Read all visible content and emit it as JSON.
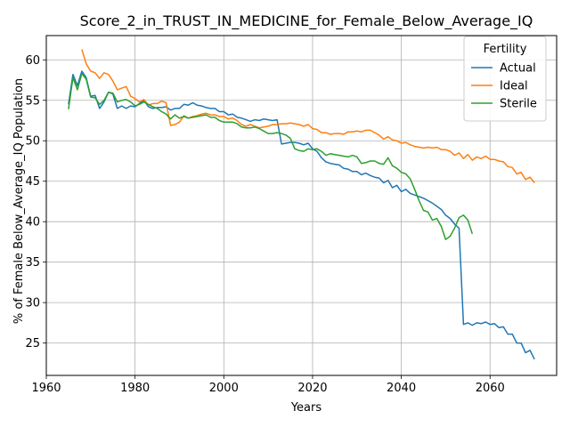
{
  "chart_data": {
    "type": "line",
    "title": "Score_2_in_TRUST_IN_MEDICINE_for_Female_Below_Average_IQ",
    "xlabel": "Years",
    "ylabel": "% of Female Below_Average_IQ Population",
    "xlim": [
      1960,
      2075
    ],
    "ylim": [
      21,
      63
    ],
    "xticks": [
      1960,
      1980,
      2000,
      2020,
      2040,
      2060
    ],
    "yticks": [
      25,
      30,
      35,
      40,
      45,
      50,
      55,
      60
    ],
    "grid": true,
    "legend": {
      "title": "Fertility",
      "placement": "top-right"
    },
    "series": [
      {
        "name": "Actual",
        "color": "#1f77b4",
        "points": [
          [
            1965,
            54.5
          ],
          [
            1966,
            58.2
          ],
          [
            1967,
            56.8
          ],
          [
            1968,
            58.6
          ],
          [
            1969,
            57.8
          ],
          [
            1970,
            55.5
          ],
          [
            1971,
            55.6
          ],
          [
            1972,
            54.0
          ],
          [
            1973,
            54.8
          ],
          [
            1974,
            56.0
          ],
          [
            1975,
            55.8
          ],
          [
            1976,
            54.0
          ],
          [
            1977,
            54.3
          ],
          [
            1978,
            54.0
          ],
          [
            1979,
            54.3
          ],
          [
            1980,
            54.2
          ],
          [
            1981,
            54.6
          ],
          [
            1982,
            55.0
          ],
          [
            1983,
            54.2
          ],
          [
            1984,
            54.0
          ],
          [
            1985,
            54.1
          ],
          [
            1986,
            54.1
          ],
          [
            1987,
            54.2
          ],
          [
            1988,
            53.8
          ],
          [
            1989,
            54.0
          ],
          [
            1990,
            54.0
          ],
          [
            1991,
            54.5
          ],
          [
            1992,
            54.4
          ],
          [
            1993,
            54.7
          ],
          [
            1994,
            54.4
          ],
          [
            1995,
            54.3
          ],
          [
            1996,
            54.1
          ],
          [
            1997,
            54.0
          ],
          [
            1998,
            54.0
          ],
          [
            1999,
            53.6
          ],
          [
            2000,
            53.6
          ],
          [
            2001,
            53.2
          ],
          [
            2002,
            53.3
          ],
          [
            2003,
            52.9
          ],
          [
            2004,
            52.8
          ],
          [
            2005,
            52.6
          ],
          [
            2006,
            52.4
          ],
          [
            2007,
            52.6
          ],
          [
            2008,
            52.5
          ],
          [
            2009,
            52.7
          ],
          [
            2010,
            52.6
          ],
          [
            2011,
            52.5
          ],
          [
            2012,
            52.6
          ],
          [
            2013,
            49.6
          ],
          [
            2014,
            49.7
          ],
          [
            2015,
            49.8
          ],
          [
            2016,
            49.8
          ],
          [
            2017,
            49.7
          ],
          [
            2018,
            49.5
          ],
          [
            2019,
            49.7
          ],
          [
            2020,
            49.0
          ],
          [
            2021,
            48.7
          ],
          [
            2022,
            47.9
          ],
          [
            2023,
            47.4
          ],
          [
            2024,
            47.2
          ],
          [
            2025,
            47.1
          ],
          [
            2026,
            47.0
          ],
          [
            2027,
            46.6
          ],
          [
            2028,
            46.5
          ],
          [
            2029,
            46.2
          ],
          [
            2030,
            46.2
          ],
          [
            2031,
            45.8
          ],
          [
            2032,
            46.0
          ],
          [
            2033,
            45.7
          ],
          [
            2034,
            45.5
          ],
          [
            2035,
            45.4
          ],
          [
            2036,
            44.8
          ],
          [
            2037,
            45.1
          ],
          [
            2038,
            44.2
          ],
          [
            2039,
            44.5
          ],
          [
            2040,
            43.7
          ],
          [
            2041,
            44.0
          ],
          [
            2042,
            43.5
          ],
          [
            2043,
            43.3
          ],
          [
            2044,
            43.1
          ],
          [
            2045,
            42.9
          ],
          [
            2046,
            42.6
          ],
          [
            2047,
            42.3
          ],
          [
            2048,
            41.9
          ],
          [
            2049,
            41.5
          ],
          [
            2050,
            40.8
          ],
          [
            2051,
            40.4
          ],
          [
            2052,
            39.7
          ],
          [
            2053,
            39.2
          ],
          [
            2054,
            27.3
          ],
          [
            2055,
            27.5
          ],
          [
            2056,
            27.2
          ],
          [
            2057,
            27.5
          ],
          [
            2058,
            27.4
          ],
          [
            2059,
            27.6
          ],
          [
            2060,
            27.3
          ],
          [
            2061,
            27.4
          ],
          [
            2062,
            26.9
          ],
          [
            2063,
            27.0
          ],
          [
            2064,
            26.1
          ],
          [
            2065,
            26.1
          ],
          [
            2066,
            25.0
          ],
          [
            2067,
            25.0
          ],
          [
            2068,
            23.8
          ],
          [
            2069,
            24.1
          ],
          [
            2070,
            23.0
          ]
        ]
      },
      {
        "name": "Ideal",
        "color": "#ff7f0e",
        "points": [
          [
            1968,
            61.3
          ],
          [
            1969,
            59.5
          ],
          [
            1970,
            58.6
          ],
          [
            1971,
            58.4
          ],
          [
            1972,
            57.7
          ],
          [
            1973,
            58.4
          ],
          [
            1974,
            58.2
          ],
          [
            1975,
            57.4
          ],
          [
            1976,
            56.3
          ],
          [
            1977,
            56.5
          ],
          [
            1978,
            56.7
          ],
          [
            1979,
            55.5
          ],
          [
            1980,
            55.2
          ],
          [
            1981,
            54.8
          ],
          [
            1982,
            55.1
          ],
          [
            1983,
            54.4
          ],
          [
            1984,
            54.6
          ],
          [
            1985,
            54.6
          ],
          [
            1986,
            54.9
          ],
          [
            1987,
            54.7
          ],
          [
            1988,
            51.9
          ],
          [
            1989,
            52.0
          ],
          [
            1990,
            52.3
          ],
          [
            1991,
            53.1
          ],
          [
            1992,
            52.8
          ],
          [
            1993,
            53.0
          ],
          [
            1994,
            53.1
          ],
          [
            1995,
            53.3
          ],
          [
            1996,
            53.4
          ],
          [
            1997,
            53.2
          ],
          [
            1998,
            53.2
          ],
          [
            1999,
            53.0
          ],
          [
            2000,
            53.0
          ],
          [
            2001,
            52.7
          ],
          [
            2002,
            52.8
          ],
          [
            2003,
            52.5
          ],
          [
            2004,
            52.0
          ],
          [
            2005,
            51.8
          ],
          [
            2006,
            52.0
          ],
          [
            2007,
            51.8
          ],
          [
            2008,
            51.6
          ],
          [
            2009,
            51.7
          ],
          [
            2010,
            51.8
          ],
          [
            2011,
            52.0
          ],
          [
            2012,
            52.0
          ],
          [
            2013,
            52.1
          ],
          [
            2014,
            52.1
          ],
          [
            2015,
            52.2
          ],
          [
            2016,
            52.1
          ],
          [
            2017,
            52.0
          ],
          [
            2018,
            51.8
          ],
          [
            2019,
            52.0
          ],
          [
            2020,
            51.5
          ],
          [
            2021,
            51.4
          ],
          [
            2022,
            51.0
          ],
          [
            2023,
            51.0
          ],
          [
            2024,
            50.8
          ],
          [
            2025,
            50.9
          ],
          [
            2026,
            50.9
          ],
          [
            2027,
            50.8
          ],
          [
            2028,
            51.1
          ],
          [
            2029,
            51.1
          ],
          [
            2030,
            51.2
          ],
          [
            2031,
            51.1
          ],
          [
            2032,
            51.3
          ],
          [
            2033,
            51.3
          ],
          [
            2034,
            51.0
          ],
          [
            2035,
            50.7
          ],
          [
            2036,
            50.2
          ],
          [
            2037,
            50.5
          ],
          [
            2038,
            50.1
          ],
          [
            2039,
            50.0
          ],
          [
            2040,
            49.7
          ],
          [
            2041,
            49.8
          ],
          [
            2042,
            49.5
          ],
          [
            2043,
            49.3
          ],
          [
            2044,
            49.2
          ],
          [
            2045,
            49.1
          ],
          [
            2046,
            49.2
          ],
          [
            2047,
            49.1
          ],
          [
            2048,
            49.2
          ],
          [
            2049,
            48.9
          ],
          [
            2050,
            48.9
          ],
          [
            2051,
            48.7
          ],
          [
            2052,
            48.2
          ],
          [
            2053,
            48.5
          ],
          [
            2054,
            47.8
          ],
          [
            2055,
            48.3
          ],
          [
            2056,
            47.6
          ],
          [
            2057,
            48.0
          ],
          [
            2058,
            47.8
          ],
          [
            2059,
            48.1
          ],
          [
            2060,
            47.7
          ],
          [
            2061,
            47.7
          ],
          [
            2062,
            47.5
          ],
          [
            2063,
            47.4
          ],
          [
            2064,
            46.8
          ],
          [
            2065,
            46.7
          ],
          [
            2066,
            45.9
          ],
          [
            2067,
            46.1
          ],
          [
            2068,
            45.2
          ],
          [
            2069,
            45.5
          ],
          [
            2070,
            44.8
          ]
        ]
      },
      {
        "name": "Sterile",
        "color": "#2ca02c",
        "points": [
          [
            1965,
            53.9
          ],
          [
            1966,
            57.8
          ],
          [
            1967,
            56.3
          ],
          [
            1968,
            58.3
          ],
          [
            1969,
            57.6
          ],
          [
            1970,
            55.4
          ],
          [
            1971,
            55.3
          ],
          [
            1972,
            54.5
          ],
          [
            1973,
            55.0
          ],
          [
            1974,
            56.0
          ],
          [
            1975,
            55.9
          ],
          [
            1976,
            54.8
          ],
          [
            1977,
            55.0
          ],
          [
            1978,
            55.1
          ],
          [
            1979,
            54.8
          ],
          [
            1980,
            54.3
          ],
          [
            1981,
            54.5
          ],
          [
            1982,
            54.8
          ],
          [
            1983,
            54.5
          ],
          [
            1984,
            54.2
          ],
          [
            1985,
            54.0
          ],
          [
            1986,
            53.6
          ],
          [
            1987,
            53.3
          ],
          [
            1988,
            52.7
          ],
          [
            1989,
            53.2
          ],
          [
            1990,
            52.8
          ],
          [
            1991,
            53.0
          ],
          [
            1992,
            52.8
          ],
          [
            1993,
            52.9
          ],
          [
            1994,
            53.0
          ],
          [
            1995,
            53.1
          ],
          [
            1996,
            53.2
          ],
          [
            1997,
            52.9
          ],
          [
            1998,
            52.9
          ],
          [
            1999,
            52.5
          ],
          [
            2000,
            52.3
          ],
          [
            2001,
            52.3
          ],
          [
            2002,
            52.3
          ],
          [
            2003,
            52.1
          ],
          [
            2004,
            51.7
          ],
          [
            2005,
            51.6
          ],
          [
            2006,
            51.6
          ],
          [
            2007,
            51.7
          ],
          [
            2008,
            51.5
          ],
          [
            2009,
            51.2
          ],
          [
            2010,
            50.9
          ],
          [
            2011,
            50.9
          ],
          [
            2012,
            51.0
          ],
          [
            2013,
            50.9
          ],
          [
            2014,
            50.7
          ],
          [
            2015,
            50.3
          ],
          [
            2016,
            49.0
          ],
          [
            2017,
            48.8
          ],
          [
            2018,
            48.7
          ],
          [
            2019,
            49.0
          ],
          [
            2020,
            48.9
          ],
          [
            2021,
            49.0
          ],
          [
            2022,
            48.7
          ],
          [
            2023,
            48.2
          ],
          [
            2024,
            48.4
          ],
          [
            2025,
            48.3
          ],
          [
            2026,
            48.2
          ],
          [
            2027,
            48.1
          ],
          [
            2028,
            48.0
          ],
          [
            2029,
            48.2
          ],
          [
            2030,
            48.0
          ],
          [
            2031,
            47.2
          ],
          [
            2032,
            47.3
          ],
          [
            2033,
            47.5
          ],
          [
            2034,
            47.5
          ],
          [
            2035,
            47.2
          ],
          [
            2036,
            47.1
          ],
          [
            2037,
            47.9
          ],
          [
            2038,
            46.9
          ],
          [
            2039,
            46.6
          ],
          [
            2040,
            46.1
          ],
          [
            2041,
            45.9
          ],
          [
            2042,
            45.3
          ],
          [
            2043,
            44.0
          ],
          [
            2044,
            42.6
          ],
          [
            2045,
            41.4
          ],
          [
            2046,
            41.2
          ],
          [
            2047,
            40.2
          ],
          [
            2048,
            40.4
          ],
          [
            2049,
            39.4
          ],
          [
            2050,
            37.8
          ],
          [
            2051,
            38.2
          ],
          [
            2052,
            39.2
          ],
          [
            2053,
            40.5
          ],
          [
            2054,
            40.8
          ],
          [
            2055,
            40.2
          ],
          [
            2056,
            38.5
          ]
        ]
      }
    ]
  }
}
